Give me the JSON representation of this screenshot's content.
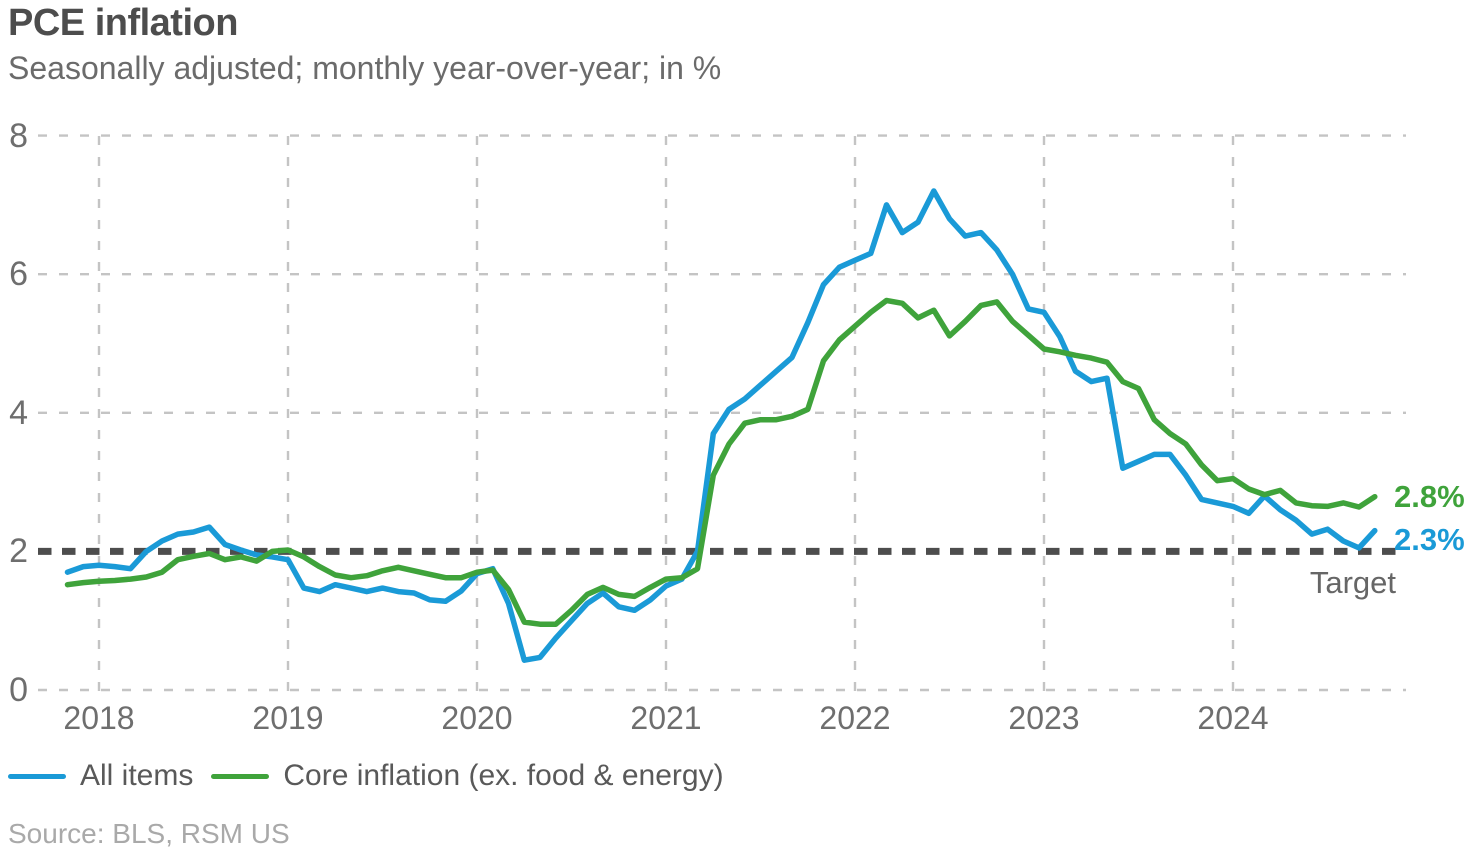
{
  "header": {
    "title": "PCE inflation",
    "subtitle": "Seasonally adjusted; monthly year-over-year; in %"
  },
  "chart_data": {
    "type": "line",
    "title": "PCE inflation",
    "subtitle": "Seasonally adjusted; monthly year-over-year; in %",
    "frequency": "monthly",
    "x_start": "2017-11",
    "x_end": "2024-10",
    "x_tick_labels": [
      "2018",
      "2019",
      "2020",
      "2021",
      "2022",
      "2023",
      "2024"
    ],
    "y_ticks": [
      8,
      6,
      4,
      2,
      0
    ],
    "ylim": [
      0,
      8
    ],
    "grid": true,
    "legend_position": "bottom",
    "target_line": {
      "value": 2,
      "label": "Target",
      "color": "#4D4D4D"
    },
    "series": [
      {
        "name": "All items",
        "color": "#1A9AD7",
        "end_label": "2.3%",
        "values": [
          1.7,
          1.78,
          1.8,
          1.78,
          1.75,
          2.0,
          2.15,
          2.25,
          2.28,
          2.35,
          2.1,
          2.02,
          1.95,
          1.92,
          1.88,
          1.47,
          1.42,
          1.52,
          1.47,
          1.42,
          1.47,
          1.42,
          1.4,
          1.3,
          1.28,
          1.43,
          1.68,
          1.75,
          1.25,
          0.43,
          0.47,
          0.75,
          1.0,
          1.25,
          1.4,
          1.2,
          1.15,
          1.3,
          1.5,
          1.6,
          2.0,
          3.7,
          4.05,
          4.2,
          4.4,
          4.6,
          4.8,
          5.3,
          5.85,
          6.1,
          6.2,
          6.3,
          7.0,
          6.6,
          6.75,
          7.2,
          6.8,
          6.55,
          6.6,
          6.35,
          6.0,
          5.5,
          5.45,
          5.1,
          4.6,
          4.45,
          4.5,
          3.2,
          3.3,
          3.4,
          3.4,
          3.1,
          2.75,
          2.7,
          2.65,
          2.55,
          2.8,
          2.6,
          2.45,
          2.25,
          2.32,
          2.15,
          2.05,
          2.3
        ]
      },
      {
        "name": "Core inflation (ex. food & energy)",
        "color": "#3FA33B",
        "end_label": "2.8%",
        "values": [
          1.52,
          1.55,
          1.57,
          1.58,
          1.6,
          1.63,
          1.7,
          1.88,
          1.93,
          1.97,
          1.88,
          1.92,
          1.86,
          2.0,
          2.02,
          1.92,
          1.78,
          1.66,
          1.62,
          1.65,
          1.72,
          1.77,
          1.72,
          1.67,
          1.62,
          1.62,
          1.7,
          1.73,
          1.45,
          0.98,
          0.95,
          0.95,
          1.15,
          1.38,
          1.48,
          1.38,
          1.35,
          1.48,
          1.6,
          1.62,
          1.75,
          3.1,
          3.55,
          3.85,
          3.9,
          3.9,
          3.95,
          4.05,
          4.75,
          5.05,
          5.25,
          5.45,
          5.62,
          5.58,
          5.37,
          5.48,
          5.11,
          5.32,
          5.55,
          5.6,
          5.32,
          5.12,
          4.92,
          4.88,
          4.83,
          4.79,
          4.73,
          4.45,
          4.35,
          3.9,
          3.7,
          3.55,
          3.25,
          3.02,
          3.05,
          2.9,
          2.82,
          2.88,
          2.7,
          2.66,
          2.65,
          2.7,
          2.64,
          2.79
        ]
      }
    ],
    "grid_color": "#C4C4C4"
  },
  "footer": {
    "source": "Source: BLS, RSM US"
  }
}
